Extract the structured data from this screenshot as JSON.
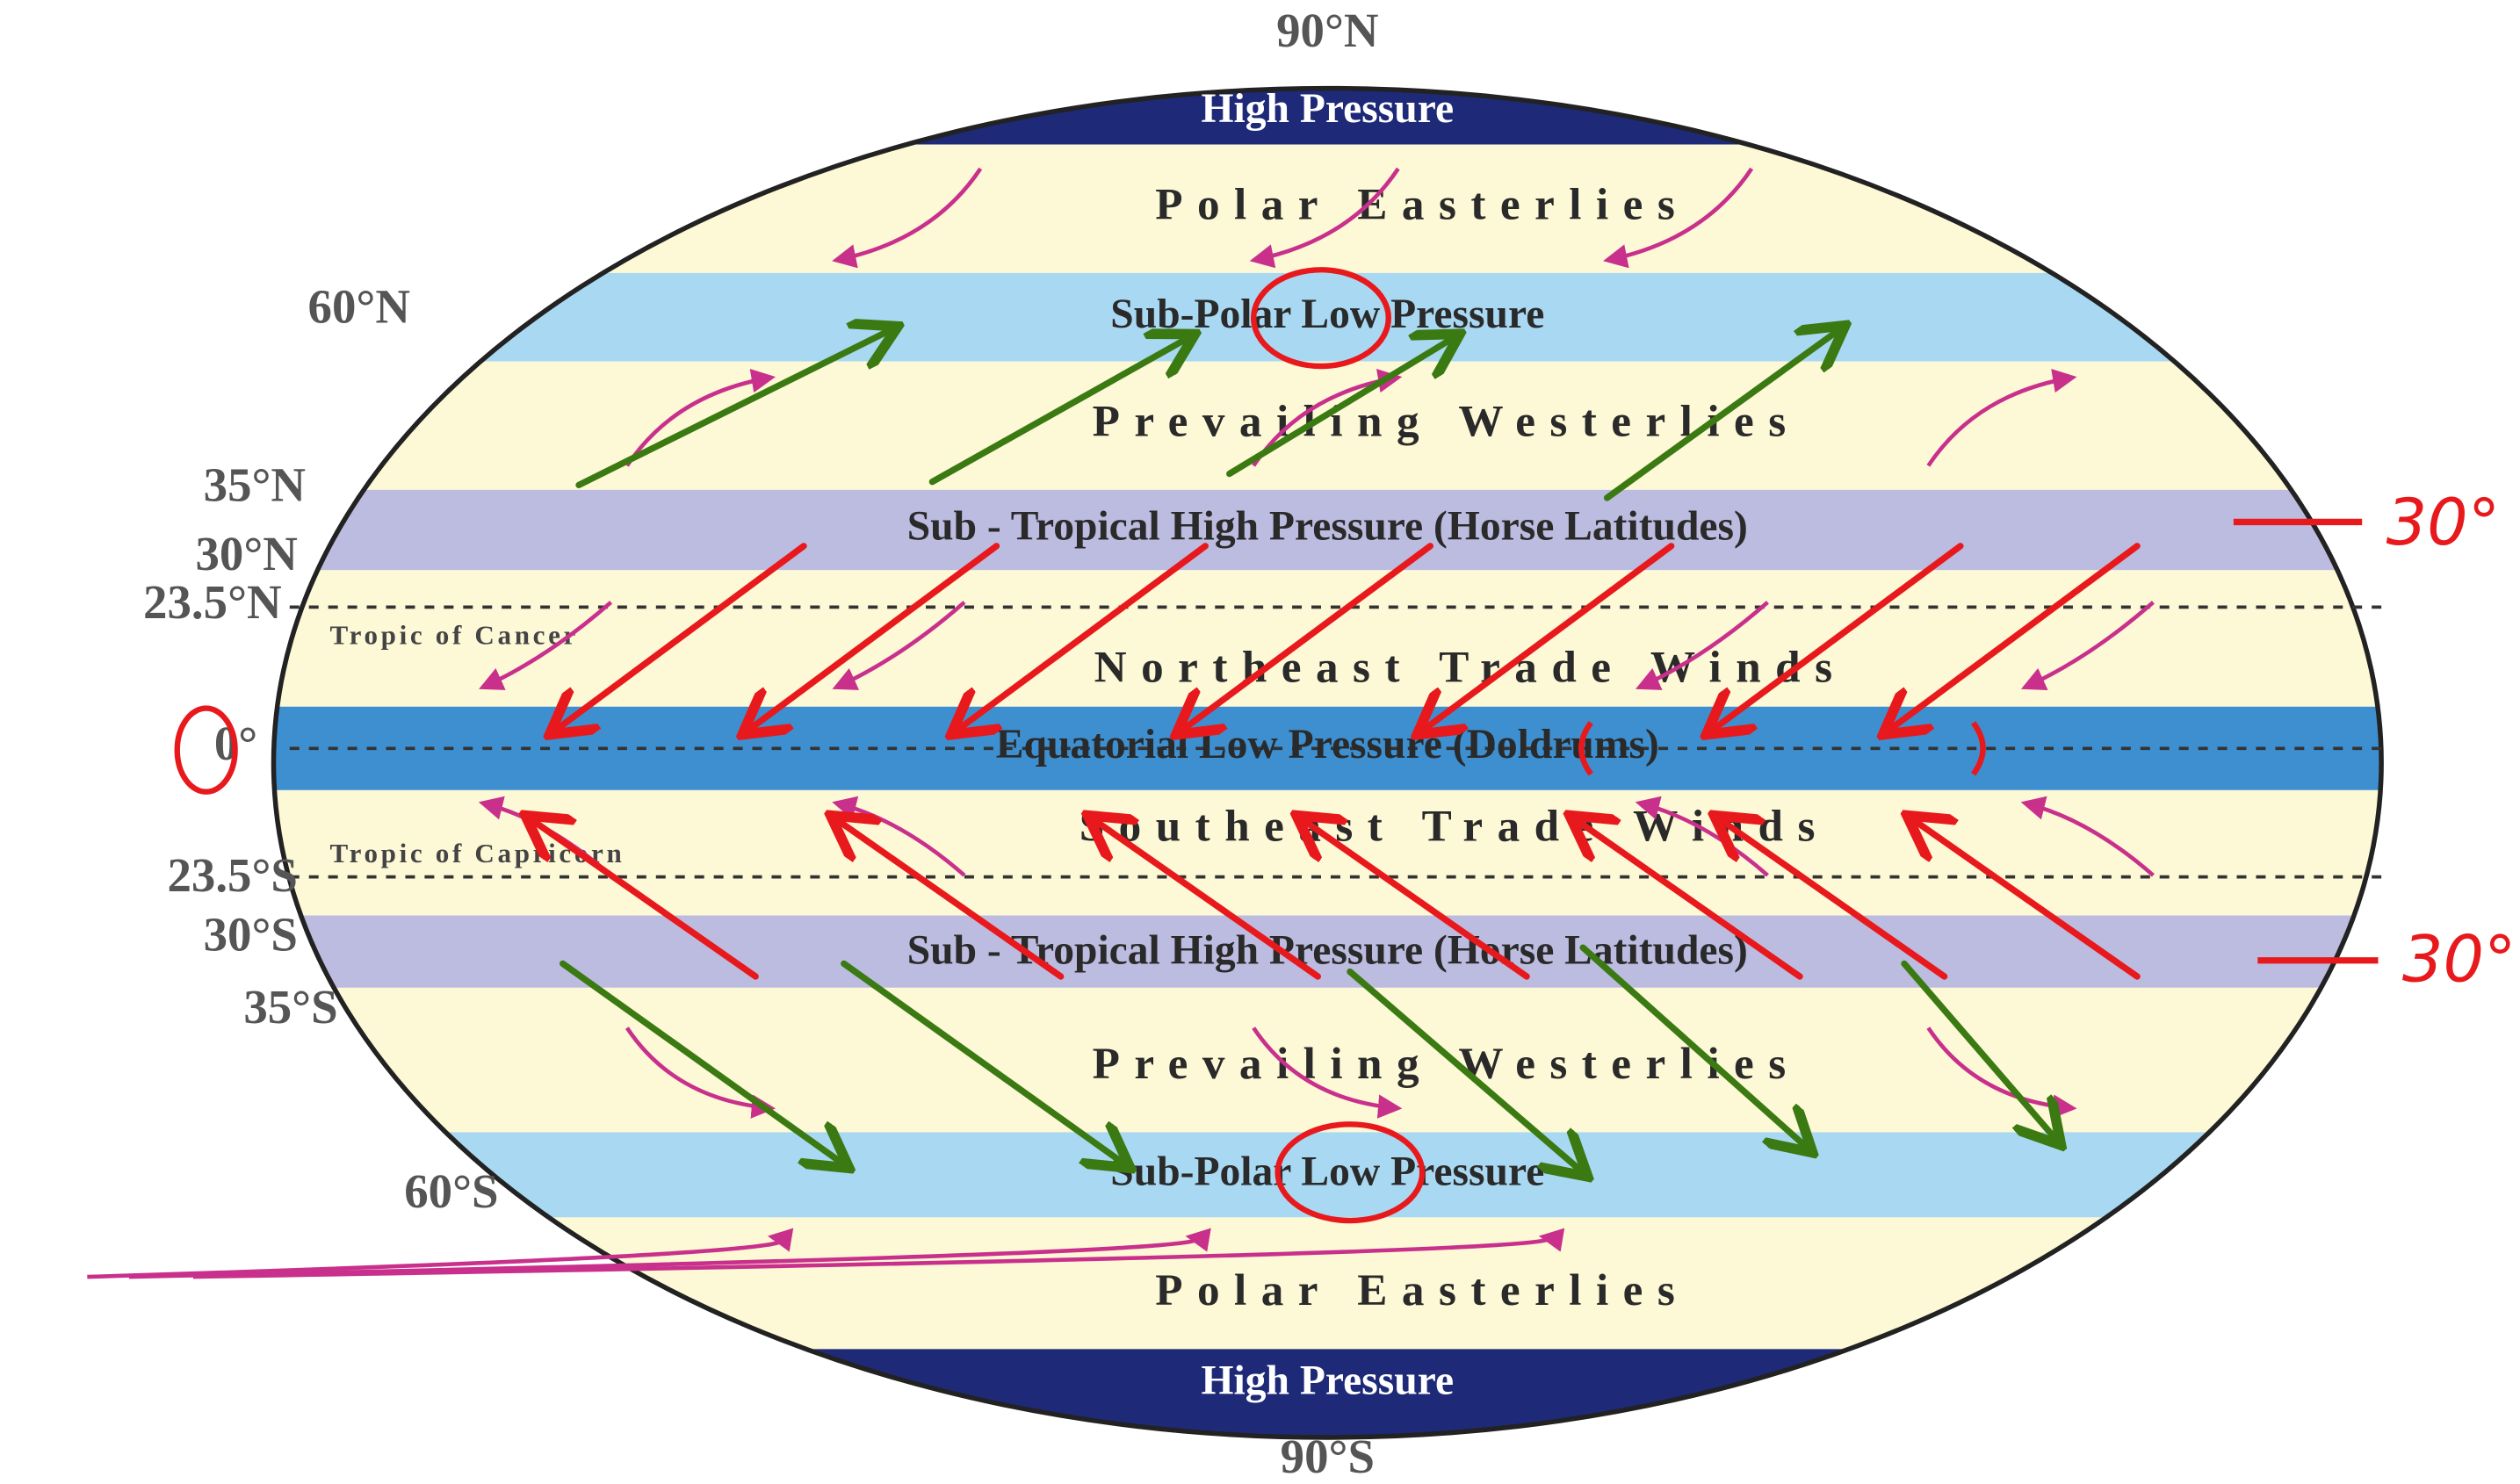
{
  "poles": {
    "north": "90°N",
    "south": "90°S"
  },
  "bands": {
    "north_high": "High Pressure",
    "north_polar_easterlies": "Polar Easterlies",
    "north_subpolar_low": "Sub-Polar Low Pressure",
    "north_westerlies": "Prevailing Westerlies",
    "north_subtropical_high": "Sub - Tropical High Pressure (Horse Latitudes)",
    "tropic_of_cancer": "Tropic of Cancer",
    "northeast_trades": "Northeast Trade Winds",
    "equatorial_low": "Equatorial Low Pressure (Doldrums)",
    "southeast_trades": "Southeast Trade Winds",
    "tropic_of_capricorn": "Tropic of Capricorn",
    "south_subtropical_high": "Sub - Tropical High Pressure (Horse Latitudes)",
    "south_westerlies": "Prevailing Westerlies",
    "south_subpolar_low": "Sub-Polar Low Pressure",
    "south_polar_easterlies": "Polar Easterlies",
    "south_high": "High Pressure"
  },
  "latitudes": [
    "60°N",
    "35°N",
    "30°N",
    "23.5°N",
    "0°",
    "23.5°S",
    "30°S",
    "35°S",
    "60°S"
  ],
  "annotations": [
    "30°",
    "30°"
  ]
}
